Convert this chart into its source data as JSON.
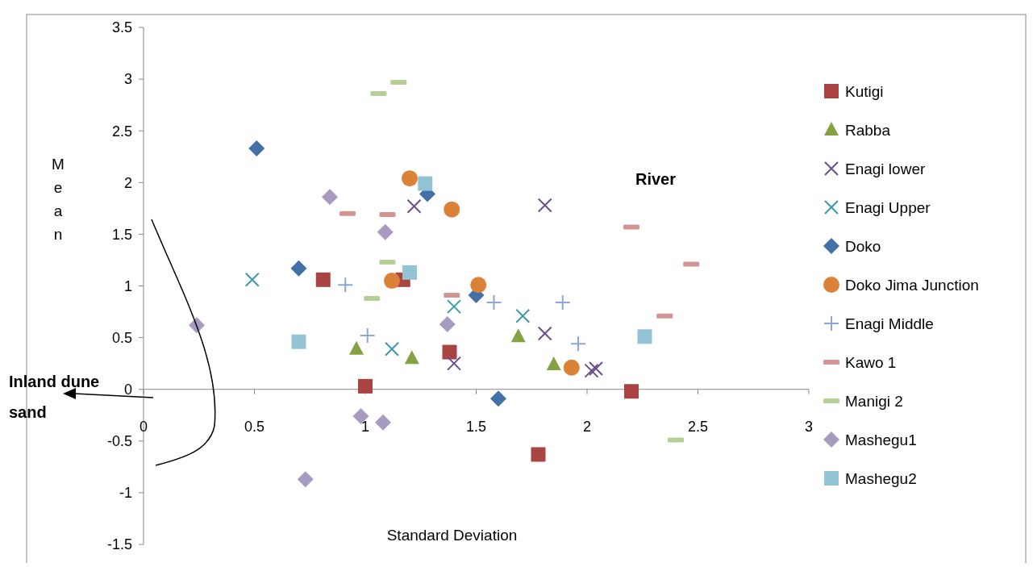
{
  "chart_data": {
    "type": "scatter",
    "xlabel": "Standard Deviation",
    "ylabel": "Mean",
    "xlim": [
      0,
      3
    ],
    "xticks": [
      0,
      0.5,
      1,
      1.5,
      2,
      2.5,
      3
    ],
    "ylim": [
      -1.5,
      3.5
    ],
    "yticks": [
      -1.5,
      -1,
      -0.5,
      0,
      0.5,
      1,
      1.5,
      2,
      2.5,
      3,
      3.5
    ],
    "grid": false,
    "legend": "right",
    "annotations": [
      {
        "text": "River"
      },
      {
        "text": "Inland dune sand"
      }
    ],
    "series": [
      {
        "name": "Kutigi",
        "color": "#a94442",
        "marker": "square",
        "x": [
          0.81,
          1.17,
          1.0,
          1.38,
          1.78,
          2.2
        ],
        "values": [
          1.06,
          1.06,
          0.03,
          0.36,
          -0.63,
          -0.02
        ]
      },
      {
        "name": "Rabba",
        "color": "#84a244",
        "marker": "triangle",
        "x": [
          0.96,
          1.21,
          1.69,
          1.85
        ],
        "values": [
          0.39,
          0.3,
          0.51,
          0.24
        ]
      },
      {
        "name": "Enagi lower",
        "color": "#6a4e8c",
        "marker": "cross",
        "x": [
          1.22,
          1.81,
          1.4,
          1.81,
          2.02,
          2.04
        ],
        "values": [
          1.77,
          1.78,
          0.25,
          0.54,
          0.18,
          0.2
        ]
      },
      {
        "name": "Enagi Upper",
        "color": "#3a9aab",
        "marker": "cross",
        "x": [
          0.49,
          1.12,
          1.4,
          1.71
        ],
        "values": [
          1.06,
          0.39,
          0.8,
          0.71
        ]
      },
      {
        "name": "Doko",
        "color": "#4271a8",
        "marker": "diamond",
        "x": [
          0.51,
          0.7,
          1.28,
          1.5,
          1.6
        ],
        "values": [
          2.33,
          1.17,
          1.89,
          0.91,
          -0.09
        ]
      },
      {
        "name": "Doko Jima Junction",
        "color": "#dc8238",
        "marker": "circle",
        "x": [
          1.2,
          1.39,
          1.12,
          1.51,
          1.93
        ],
        "values": [
          2.04,
          1.74,
          1.05,
          1.01,
          0.21
        ]
      },
      {
        "name": "Enagi Middle",
        "color": "#8ea6d4",
        "marker": "plus",
        "x": [
          0.91,
          1.01,
          1.58,
          1.89,
          1.96
        ],
        "values": [
          1.01,
          0.52,
          0.84,
          0.84,
          0.44
        ]
      },
      {
        "name": "Kawo 1",
        "color": "#d39494",
        "x": [
          0.92,
          1.1,
          1.39,
          2.2,
          2.47,
          2.35
        ],
        "values": [
          1.7,
          1.69,
          0.91,
          1.57,
          1.21,
          0.71
        ]
      },
      {
        "name": "Manigi 2",
        "color": "#b5cf95",
        "x": [
          1.06,
          1.15,
          1.1,
          1.03,
          2.4
        ],
        "values": [
          2.86,
          2.97,
          1.23,
          0.88,
          -0.49
        ]
      },
      {
        "name": "Mashegu1",
        "color": "#a99bc0",
        "marker": "diamond",
        "x": [
          0.84,
          1.09,
          0.24,
          1.37,
          0.98,
          1.08,
          0.73
        ],
        "values": [
          1.86,
          1.52,
          0.62,
          0.63,
          -0.26,
          -0.32,
          -0.87
        ]
      },
      {
        "name": "Mashegu2",
        "color": "#93c4d6",
        "marker": "square",
        "x": [
          1.27,
          1.2,
          0.7,
          2.26
        ],
        "values": [
          1.99,
          1.13,
          0.46,
          0.51
        ]
      }
    ]
  }
}
